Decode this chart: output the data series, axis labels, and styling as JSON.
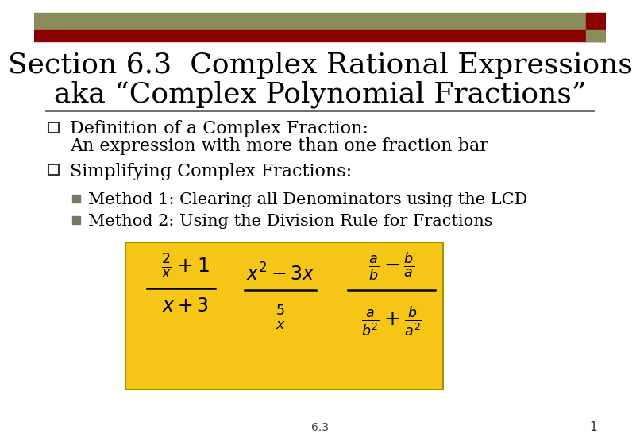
{
  "title_line1": "Section 6.3  Complex Rational Expressions",
  "title_line2": "aka “Complex Polynomial Fractions”",
  "title_fontsize": 26,
  "body_fontsize": 16,
  "sub_fontsize": 15,
  "bullet1_line1": "Definition of a Complex Fraction:",
  "bullet1_line2": "An expression with more than one fraction bar",
  "bullet2": "Simplifying Complex Fractions:",
  "sub1": "Method 1: Clearing all Denominators using the LCD",
  "sub2": "Method 2: Using the Division Rule for Fractions",
  "header_color1": "#8b8c5a",
  "header_color2": "#8b0000",
  "bg_color": "#ffffff",
  "box_color": "#f5c518",
  "box_border": "#999900",
  "text_color": "#000000",
  "footer_text": "6.3",
  "page_num": "1",
  "hr_color": "#555555",
  "sq_bullet_color": "#777766",
  "math_fs": 15
}
